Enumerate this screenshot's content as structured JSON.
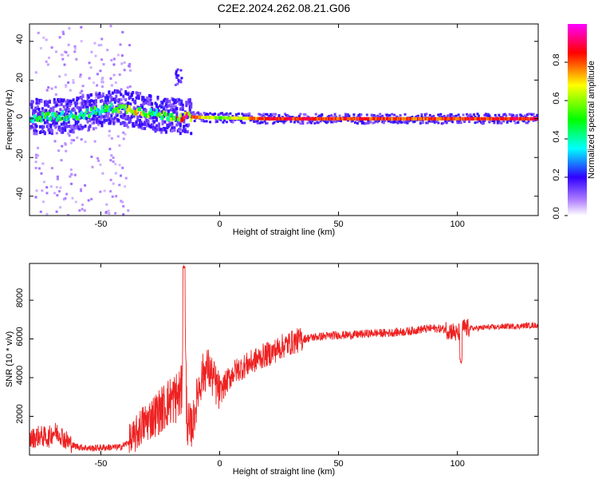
{
  "title": "C2E2.2024.262.08.21.G06",
  "chart_data": [
    {
      "type": "heatmap",
      "xlabel": "Height of straight line (km)",
      "ylabel": "Frequency (Hz)",
      "xlim": [
        -80,
        134
      ],
      "ylim": [
        -50,
        49
      ],
      "xticks": [
        -50,
        0,
        50,
        100
      ],
      "yticks": [
        -40,
        -20,
        0,
        20,
        40
      ],
      "colorbar": {
        "label": "Normalized spectral amplitude",
        "range": [
          0,
          1
        ],
        "ticks": [
          0.0,
          0.2,
          0.4,
          0.6,
          0.8
        ],
        "tick_labels": [
          "0.0",
          "0.2",
          "0.4",
          "0.6",
          "0.8"
        ],
        "colormap": [
          "#ffffff",
          "#b080ff",
          "#3000ff",
          "#00ffff",
          "#00ff00",
          "#ffff00",
          "#ff0000",
          "#ff00ff"
        ]
      },
      "ridge": {
        "description_values": [
          {
            "x": -78,
            "freq": 1,
            "amp": 0.45
          },
          {
            "x": -60,
            "freq": 2,
            "amp": 0.45
          },
          {
            "x": -45,
            "freq": 6,
            "amp": 0.5
          },
          {
            "x": -37,
            "freq": 5,
            "amp": 0.7
          },
          {
            "x": -25,
            "freq": 2,
            "amp": 0.5
          },
          {
            "x": -14,
            "freq": 1,
            "amp": 0.85
          },
          {
            "x": 0,
            "freq": 0.5,
            "amp": 0.55
          },
          {
            "x": 20,
            "freq": 0,
            "amp": 0.85
          },
          {
            "x": 80,
            "freq": 0,
            "amp": 0.8
          },
          {
            "x": 134,
            "freq": 0,
            "amp": 0.85
          }
        ]
      }
    },
    {
      "type": "line",
      "xlabel": "Height of straight line (km)",
      "ylabel": "SNR (10 * v/v)",
      "xlim": [
        -80,
        134
      ],
      "ylim": [
        0,
        9900
      ],
      "xticks": [
        -50,
        0,
        50,
        100
      ],
      "yticks": [
        2000,
        4000,
        6000,
        8000
      ],
      "color": "#ee2222",
      "series": [
        {
          "x": [
            -80,
            -76,
            -72,
            -70,
            -67,
            -65,
            -62,
            -58,
            -54,
            -50,
            -46,
            -42,
            -39,
            -36,
            -33,
            -30,
            -27,
            -24,
            -21,
            -18,
            -16,
            -15,
            -14,
            -13,
            -11,
            -9,
            -7,
            -5,
            -3,
            0,
            3,
            6,
            9,
            12,
            15,
            18,
            22,
            26,
            30,
            35,
            40,
            45,
            50,
            55,
            60,
            65,
            70,
            75,
            80,
            85,
            90,
            95,
            98,
            100,
            102,
            104,
            108,
            112,
            116,
            120,
            125,
            130,
            134
          ],
          "y": [
            800,
            1000,
            900,
            1200,
            1100,
            800,
            500,
            400,
            350,
            380,
            400,
            400,
            600,
            900,
            1500,
            1800,
            2100,
            2400,
            2800,
            3000,
            3200,
            9600,
            2800,
            1000,
            1800,
            3400,
            4200,
            4500,
            4000,
            3200,
            3800,
            4300,
            4500,
            4700,
            4900,
            5100,
            5300,
            5600,
            5800,
            6000,
            6100,
            6150,
            6200,
            6200,
            6250,
            6300,
            6300,
            6350,
            6400,
            6500,
            6550,
            6500,
            6400,
            6200,
            6600,
            6550,
            6550,
            6600,
            6600,
            6650,
            6650,
            6700,
            6700
          ]
        }
      ]
    }
  ]
}
